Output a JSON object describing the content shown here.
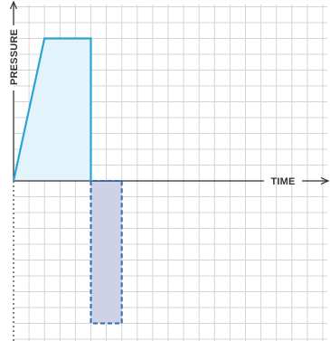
{
  "chart_data": {
    "type": "area",
    "xlabel": "TIME",
    "ylabel": "PRESSURE",
    "title": "",
    "x_range": [
      0,
      8.4
    ],
    "y_range": [
      -4.5,
      5.5
    ],
    "grid": true,
    "grid_step_x": 0.5,
    "grid_step_y": 0.5,
    "series": [
      {
        "kind": "positive-pulse",
        "style": "solid",
        "line_color": "#2aa3d6",
        "fill_color": "#e3f3fb",
        "points": [
          [
            0,
            0
          ],
          [
            1,
            4.5
          ],
          [
            2.5,
            4.5
          ],
          [
            2.5,
            0
          ]
        ]
      },
      {
        "kind": "negative-pulse",
        "style": "dashed",
        "line_color": "#2f6ab8",
        "fill_color": "#cfd1e6",
        "points": [
          [
            2.5,
            0
          ],
          [
            2.5,
            -4.5
          ],
          [
            3.5,
            -4.5
          ],
          [
            3.5,
            0
          ]
        ]
      }
    ],
    "colors": {
      "grid": "#d4d4d4",
      "axis": "#333333"
    }
  }
}
